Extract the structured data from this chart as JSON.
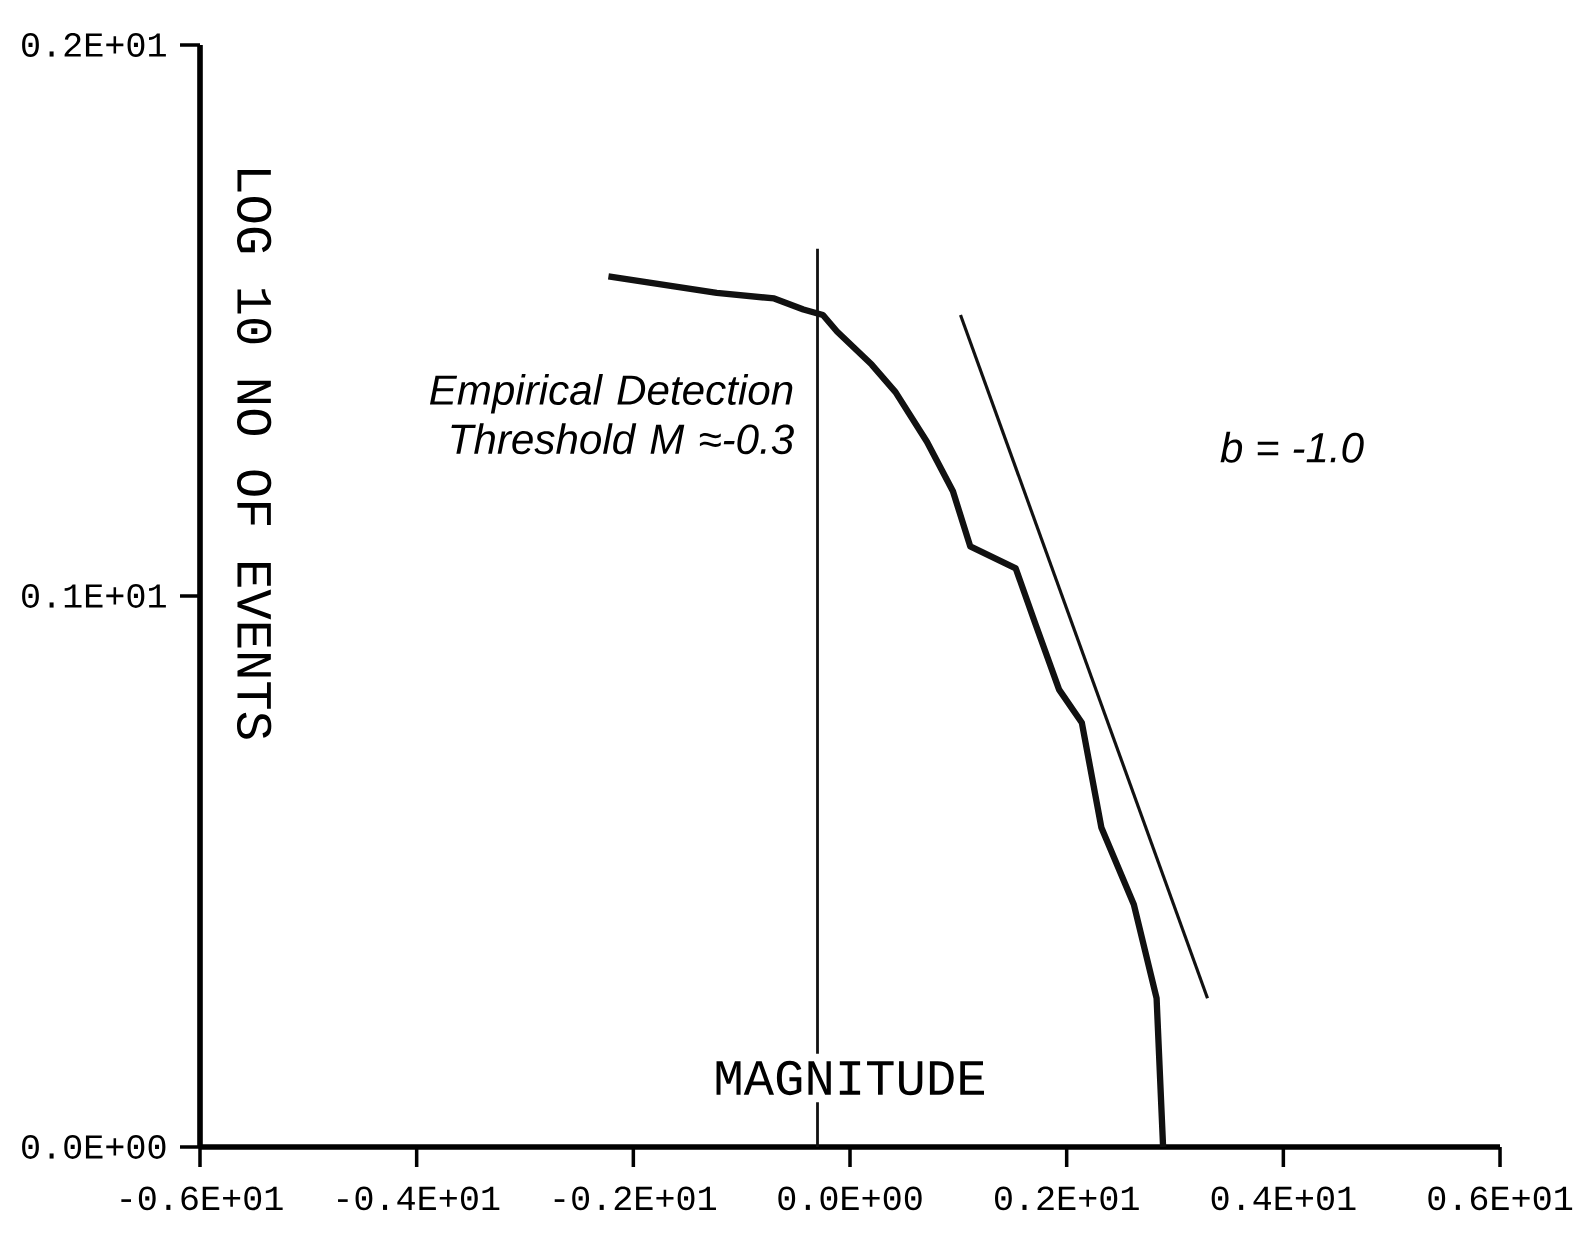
{
  "chart_data": {
    "type": "line",
    "xlabel": "MAGNITUDE",
    "ylabel": "LOG 10 NO OF EVENTS",
    "xlim": [
      -6,
      6
    ],
    "ylim": [
      0,
      2
    ],
    "xticks": [
      {
        "value": -6,
        "label": "-0.6E+01"
      },
      {
        "value": -4,
        "label": "-0.4E+01"
      },
      {
        "value": -2,
        "label": "-0.2E+01"
      },
      {
        "value": 0,
        "label": "0.0E+00"
      },
      {
        "value": 2,
        "label": "0.2E+01"
      },
      {
        "value": 4,
        "label": "0.4E+01"
      },
      {
        "value": 6,
        "label": "0.6E+01"
      }
    ],
    "yticks": [
      {
        "value": 0,
        "label": "0.0E+00"
      },
      {
        "value": 1,
        "label": "0.1E+01"
      },
      {
        "value": 2,
        "label": "0.2E+01"
      }
    ],
    "series": [
      {
        "color": "#111111",
        "x": [
          -2.23,
          -1.23,
          -0.7,
          -0.43,
          -0.25,
          -0.12,
          0.2,
          0.42,
          0.71,
          0.95,
          1.11,
          1.53,
          1.71,
          1.93,
          2.14,
          2.32,
          2.62,
          2.83,
          2.89
        ],
        "values": [
          1.58,
          1.55,
          1.54,
          1.52,
          1.51,
          1.48,
          1.42,
          1.37,
          1.28,
          1.19,
          1.09,
          1.05,
          0.95,
          0.83,
          0.77,
          0.58,
          0.44,
          0.27,
          0.0
        ]
      },
      {
        "color": "#111111",
        "x": [
          1.02,
          3.3
        ],
        "values": [
          1.51,
          0.27
        ]
      }
    ],
    "ref_lines": [
      {
        "axis": "x",
        "value": -0.3,
        "label": "Empirical Detection Threshold M ≈-0.3",
        "color": "#111111"
      }
    ],
    "annotations": [
      "b = -1.0"
    ],
    "grid": false,
    "marker": "none",
    "line_style": "solid"
  }
}
